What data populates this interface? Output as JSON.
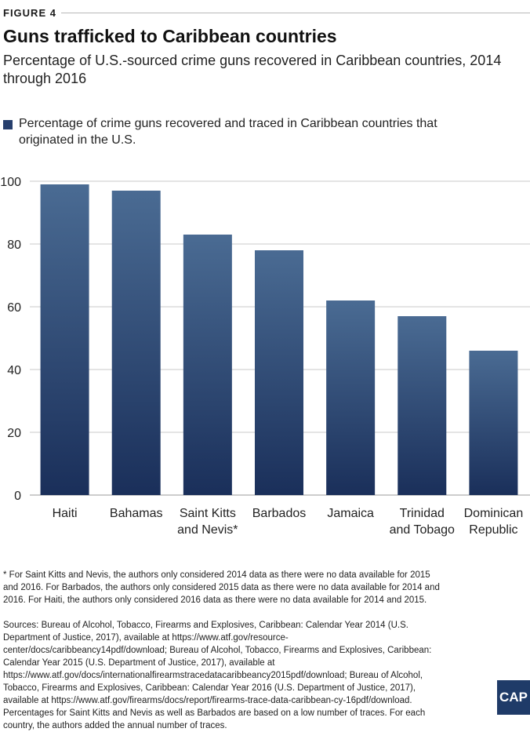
{
  "figure_label": "FIGURE 4",
  "title": "Guns trafficked to Caribbean countries",
  "subtitle": "Percentage of U.S.-sourced crime guns recovered in Caribbean countries, 2014 through 2016",
  "notes": "* For Saint Kitts and Nevis, the authors only considered 2014 data as there were no data available for 2015 and 2016. For Barbados, the authors only considered 2015 data as there were no data available for 2014 and 2016. For Haiti, the authors only considered 2016 data as there were no data available for 2014 and 2015.",
  "sources": "Sources: Bureau of Alcohol, Tobacco, Firearms and Explosives, Caribbean: Calendar Year 2014 (U.S. Department of Justice, 2017), available at https://www.atf.gov/resource-center/docs/caribbeancy14pdf/download; Bureau of Alcohol, Tobacco, Firearms and Explosives, Caribbean: Calendar Year 2015 (U.S. Department of Justice, 2017), available at https://www.atf.gov/docs/internationalfirearmstracedatacaribbeancy2015pdf/download; Bureau of Alcohol, Tobacco, Firearms and Explosives, Caribbean: Calendar Year 2016 (U.S. Department of Justice, 2017), available at https://www.atf.gov/firearms/docs/report/firearms-trace-data-caribbean-cy-16pdf/download. Percentages for Saint Kitts and Nevis as well as Barbados are based on a low number of traces. For each country, the authors added the annual number of traces.",
  "logo_text": "CAP",
  "colors": {
    "bar_top": "#4a6b93",
    "bar_bottom": "#1a2f5a",
    "legend_swatch": "#263f6d",
    "gridline": "#c8c8c8",
    "logo_bg": "#1f3b68"
  },
  "chart_data": {
    "type": "bar",
    "categories": [
      [
        "Haiti"
      ],
      [
        "Bahamas"
      ],
      [
        "Saint Kitts",
        "and Nevis*"
      ],
      [
        "Barbados"
      ],
      [
        "Jamaica"
      ],
      [
        "Trinidad",
        "and Tobago"
      ],
      [
        "Dominican",
        "Republic"
      ]
    ],
    "series": [
      {
        "name": "Percentage of crime guns recovered and traced in Caribbean countries that originated in the U.S.",
        "values": [
          99,
          97,
          83,
          78,
          62,
          57,
          46
        ]
      }
    ],
    "ylim": [
      0,
      100
    ],
    "yticks": [
      0,
      20,
      40,
      60,
      80,
      100
    ],
    "grid": true,
    "legend_position": "top-left"
  }
}
